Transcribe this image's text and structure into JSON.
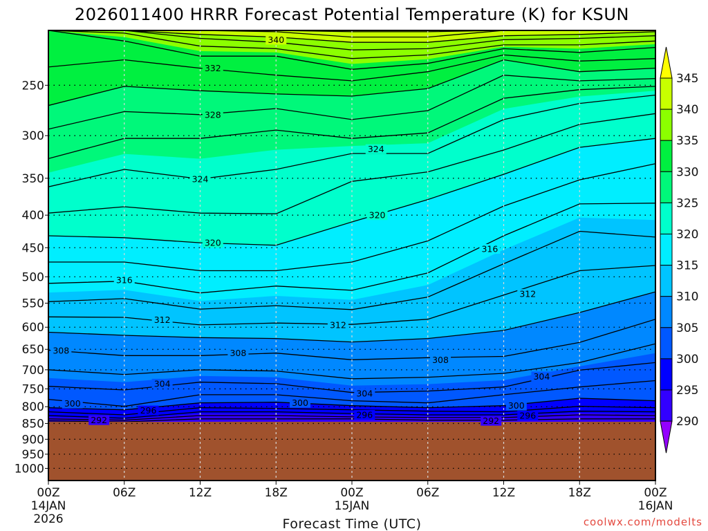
{
  "chart_data": {
    "type": "contour",
    "title": "2026011400 HRRR Forecast Potential Temperature (K) for KSUN",
    "xlabel": "Forecast Time (UTC)",
    "ylabel": "",
    "x_unit": "forecast hour",
    "y_unit": "hPa",
    "xlim": [
      0,
      48
    ],
    "ylim": [
      1045,
      205
    ],
    "grid": true,
    "x_ticks": [
      {
        "hours": 0,
        "label": "00Z",
        "date": "14JAN",
        "year": "2026"
      },
      {
        "hours": 6,
        "label": "06Z"
      },
      {
        "hours": 12,
        "label": "12Z"
      },
      {
        "hours": 18,
        "label": "18Z"
      },
      {
        "hours": 24,
        "label": "00Z",
        "date": "15JAN"
      },
      {
        "hours": 30,
        "label": "06Z"
      },
      {
        "hours": 36,
        "label": "12Z"
      },
      {
        "hours": 42,
        "label": "18Z"
      },
      {
        "hours": 48,
        "label": "00Z",
        "date": "16JAN"
      }
    ],
    "y_ticks": [
      250,
      300,
      350,
      400,
      450,
      500,
      550,
      600,
      650,
      700,
      750,
      800,
      850,
      900,
      950,
      1000
    ],
    "contour_interval_K": 2,
    "surface_pressure": 845,
    "times": [
      0,
      6,
      12,
      18,
      24,
      30,
      36,
      42,
      48
    ],
    "isentropes": [
      {
        "level": 344,
        "pressure": [
          205,
          205,
          205,
          205,
          206,
          206,
          205,
          205,
          205
        ]
      },
      {
        "level": 342,
        "pressure": [
          205,
          205,
          205,
          206,
          210,
          210,
          205,
          205,
          205
        ]
      },
      {
        "level": 340,
        "pressure": [
          205,
          205,
          208,
          210,
          214,
          214,
          209,
          208,
          206
        ]
      },
      {
        "level": 338,
        "pressure": [
          205,
          205,
          211,
          214,
          220,
          219,
          212,
          211,
          209
        ]
      },
      {
        "level": 336,
        "pressure": [
          205,
          207,
          217,
          219,
          227,
          224,
          216,
          216,
          213
        ]
      },
      {
        "level": 334,
        "pressure": [
          205,
          213,
          225,
          225,
          236,
          231,
          219,
          222,
          218
        ]
      },
      {
        "level": 332,
        "pressure": [
          234,
          228,
          235,
          241,
          246,
          238,
          224,
          229,
          227
        ]
      },
      {
        "level": 330,
        "pressure": [
          269,
          251,
          255,
          258,
          260,
          253,
          228,
          238,
          235
        ]
      },
      {
        "level": 328,
        "pressure": [
          293,
          275,
          278,
          272,
          283,
          274,
          241,
          246,
          244
        ]
      },
      {
        "level": 326,
        "pressure": [
          326,
          303,
          303,
          294,
          303,
          297,
          262,
          254,
          251
        ]
      },
      {
        "level": 324,
        "pressure": [
          361,
          339,
          351,
          339,
          320,
          320,
          283,
          267,
          259
        ]
      },
      {
        "level": 322,
        "pressure": [
          397,
          388,
          397,
          398,
          354,
          342,
          316,
          288,
          277
        ]
      },
      {
        "level": 320,
        "pressure": [
          431,
          434,
          442,
          446,
          410,
          378,
          345,
          313,
          303
        ]
      },
      {
        "level": 318,
        "pressure": [
          474,
          474,
          489,
          489,
          474,
          439,
          387,
          352,
          332
        ]
      },
      {
        "level": 316,
        "pressure": [
          512,
          508,
          530,
          517,
          525,
          493,
          431,
          384,
          383
        ]
      },
      {
        "level": 314,
        "pressure": [
          547,
          541,
          562,
          555,
          563,
          538,
          477,
          424,
          433
        ]
      },
      {
        "level": 312,
        "pressure": [
          578,
          579,
          595,
          591,
          594,
          583,
          534,
          489,
          480
        ]
      },
      {
        "level": 310,
        "pressure": [
          611,
          618,
          623,
          625,
          633,
          625,
          607,
          569,
          528
        ]
      },
      {
        "level": 308,
        "pressure": [
          652,
          665,
          665,
          659,
          675,
          670,
          667,
          634,
          583
        ]
      },
      {
        "level": 306,
        "pressure": [
          700,
          712,
          700,
          703,
          723,
          719,
          709,
          682,
          637
        ]
      },
      {
        "level": 304,
        "pressure": [
          743,
          753,
          732,
          736,
          760,
          756,
          745,
          701,
          682
        ]
      },
      {
        "level": 302,
        "pressure": [
          779,
          799,
          766,
          766,
          783,
          789,
          766,
          745,
          728
        ]
      },
      {
        "level": 300,
        "pressure": [
          803,
          809,
          789,
          787,
          797,
          803,
          797,
          776,
          783
        ]
      },
      {
        "level": 298,
        "pressure": [
          815,
          824,
          803,
          805,
          809,
          813,
          815,
          799,
          803
        ]
      },
      {
        "level": 296,
        "pressure": [
          826,
          834,
          815,
          815,
          820,
          824,
          824,
          813,
          815
        ]
      },
      {
        "level": 294,
        "pressure": [
          836,
          840,
          826,
          826,
          830,
          832,
          832,
          824,
          826
        ]
      },
      {
        "level": 292,
        "pressure": [
          842,
          845,
          836,
          836,
          836,
          840,
          840,
          836,
          836
        ]
      }
    ],
    "contour_labels": [
      {
        "text": "340",
        "hours": 18,
        "pressure": 212
      },
      {
        "text": "332",
        "hours": 13,
        "pressure": 235
      },
      {
        "text": "328",
        "hours": 13,
        "pressure": 278
      },
      {
        "text": "324",
        "hours": 12,
        "pressure": 351
      },
      {
        "text": "324",
        "hours": 25.9,
        "pressure": 315
      },
      {
        "text": "320",
        "hours": 13,
        "pressure": 442
      },
      {
        "text": "320",
        "hours": 26,
        "pressure": 400
      },
      {
        "text": "316",
        "hours": 6,
        "pressure": 506
      },
      {
        "text": "316",
        "hours": 34.9,
        "pressure": 452
      },
      {
        "text": "312",
        "hours": 9,
        "pressure": 584
      },
      {
        "text": "312",
        "hours": 22.9,
        "pressure": 595
      },
      {
        "text": "312",
        "hours": 37.9,
        "pressure": 532
      },
      {
        "text": "308",
        "hours": 1,
        "pressure": 653
      },
      {
        "text": "308",
        "hours": 15,
        "pressure": 659
      },
      {
        "text": "308",
        "hours": 31,
        "pressure": 675
      },
      {
        "text": "304",
        "hours": 9,
        "pressure": 736
      },
      {
        "text": "304",
        "hours": 25,
        "pressure": 762
      },
      {
        "text": "304",
        "hours": 39,
        "pressure": 717
      },
      {
        "text": "300",
        "hours": 1.9,
        "pressure": 791
      },
      {
        "text": "300",
        "hours": 19.9,
        "pressure": 789
      },
      {
        "text": "300",
        "hours": 37,
        "pressure": 797
      },
      {
        "text": "296",
        "hours": 7.9,
        "pressure": 811
      },
      {
        "text": "296",
        "hours": 25,
        "pressure": 824
      },
      {
        "text": "296",
        "hours": 37.9,
        "pressure": 826
      },
      {
        "text": "292",
        "hours": 4,
        "pressure": 840
      },
      {
        "text": "292",
        "hours": 35,
        "pressure": 842
      }
    ],
    "colorbar": {
      "labels": [
        "345",
        "340",
        "335",
        "330",
        "325",
        "320",
        "315",
        "310",
        "305",
        "300",
        "295",
        "290"
      ],
      "band_bounds": [
        345,
        340,
        335,
        330,
        325,
        320,
        315,
        310,
        305,
        300,
        295,
        290
      ],
      "band_colors": [
        "#c8ff00",
        "#8cff00",
        "#00f040",
        "#00f87a",
        "#00ffcc",
        "#00eeff",
        "#00c4ff",
        "#0088ff",
        "#0058ff",
        "#0000ff",
        "#3200ff"
      ],
      "over_color": "#ffff00",
      "under_color": "#9400ff"
    },
    "ground_color": "#a0522d",
    "credit": "coolwx.com/modelts"
  }
}
